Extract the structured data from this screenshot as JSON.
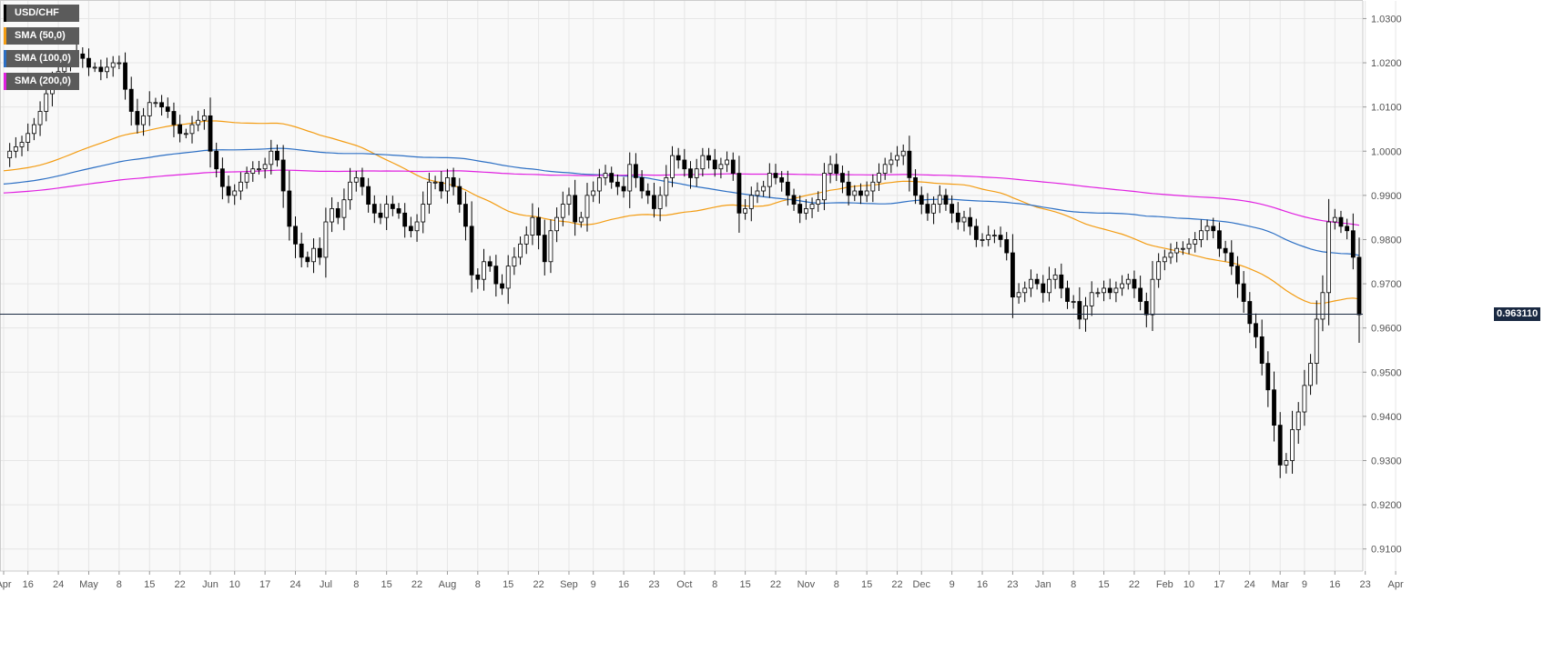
{
  "colors": {
    "background": "#f9f9f9",
    "grid": "#e6e6e6",
    "candle_up": "#ffffff",
    "candle_down": "#000000",
    "wick": "#000000",
    "price_line": "#1a2942"
  },
  "legend": [
    {
      "label": "USD/CHF",
      "color": "#000000"
    },
    {
      "label": "SMA (50,0)",
      "color": "#f39c12"
    },
    {
      "label": "SMA (100,0)",
      "color": "#2c6fc4"
    },
    {
      "label": "SMA (200,0)",
      "color": "#e020e0"
    }
  ],
  "current_price": {
    "label": "0.963110",
    "value": 0.96311
  },
  "chart_data": {
    "type": "candlestick",
    "symbol": "USD/CHF",
    "timeframe": "daily",
    "ylim": [
      0.905,
      1.034
    ],
    "y_ticks": [
      1.03,
      1.02,
      1.01,
      1.0,
      0.99,
      0.98,
      0.97,
      0.96,
      0.95,
      0.94,
      0.93,
      0.92,
      0.91
    ],
    "y_tick_labels": [
      "1.0300",
      "1.0200",
      "1.0100",
      "1.0000",
      "0.9900",
      "0.9800",
      "0.9700",
      "0.9600",
      "0.9500",
      "0.9400",
      "0.9300",
      "0.9200",
      "0.9100"
    ],
    "x_labels": [
      "Apr",
      "16",
      "24",
      "May",
      "8",
      "15",
      "22",
      "Jun",
      "10",
      "17",
      "24",
      "Jul",
      "8",
      "15",
      "22",
      "Aug",
      "8",
      "15",
      "22",
      "Sep",
      "9",
      "16",
      "23",
      "Oct",
      "8",
      "15",
      "22",
      "Nov",
      "8",
      "15",
      "22",
      "Dec",
      "9",
      "16",
      "23",
      "Jan",
      "8",
      "15",
      "22",
      "Feb",
      "10",
      "17",
      "24",
      "Mar",
      "9",
      "16",
      "23",
      "Apr"
    ],
    "x_label_positions": [
      0,
      4,
      9,
      14,
      19,
      24,
      29,
      34,
      38,
      43,
      48,
      53,
      58,
      63,
      68,
      73,
      78,
      83,
      88,
      93,
      97,
      102,
      107,
      112,
      117,
      122,
      127,
      132,
      137,
      142,
      147,
      151,
      156,
      161,
      166,
      171,
      176,
      181,
      186,
      191,
      195,
      200,
      205,
      210,
      214,
      219,
      224,
      229
    ],
    "close_series": [
      0.9985,
      1.0,
      1.001,
      1.002,
      1.004,
      1.006,
      1.009,
      1.013,
      1.016,
      1.018,
      1.02,
      1.021,
      1.022,
      1.021,
      1.019,
      1.019,
      1.018,
      1.019,
      1.02,
      1.02,
      1.014,
      1.009,
      1.006,
      1.008,
      1.011,
      1.011,
      1.01,
      1.009,
      1.006,
      1.004,
      1.004,
      1.006,
      1.007,
      1.008,
      1.0,
      0.996,
      0.992,
      0.99,
      0.991,
      0.993,
      0.995,
      0.996,
      0.996,
      0.997,
      1.0,
      0.998,
      0.991,
      0.983,
      0.979,
      0.976,
      0.975,
      0.978,
      0.976,
      0.984,
      0.987,
      0.985,
      0.989,
      0.993,
      0.994,
      0.992,
      0.988,
      0.986,
      0.985,
      0.988,
      0.987,
      0.986,
      0.983,
      0.982,
      0.984,
      0.988,
      0.993,
      0.993,
      0.991,
      0.994,
      0.992,
      0.988,
      0.983,
      0.972,
      0.971,
      0.975,
      0.974,
      0.97,
      0.969,
      0.974,
      0.976,
      0.979,
      0.981,
      0.985,
      0.981,
      0.975,
      0.982,
      0.985,
      0.988,
      0.99,
      0.984,
      0.985,
      0.99,
      0.991,
      0.994,
      0.995,
      0.993,
      0.992,
      0.991,
      0.997,
      0.994,
      0.991,
      0.99,
      0.987,
      0.99,
      0.994,
      0.999,
      0.998,
      0.996,
      0.994,
      0.996,
      0.999,
      0.998,
      0.996,
      0.997,
      0.998,
      0.995,
      0.986,
      0.987,
      0.99,
      0.991,
      0.992,
      0.995,
      0.994,
      0.993,
      0.99,
      0.988,
      0.986,
      0.987,
      0.988,
      0.989,
      0.995,
      0.997,
      0.995,
      0.993,
      0.99,
      0.991,
      0.99,
      0.991,
      0.993,
      0.995,
      0.997,
      0.998,
      0.999,
      1.0,
      0.994,
      0.99,
      0.988,
      0.986,
      0.988,
      0.99,
      0.988,
      0.986,
      0.984,
      0.985,
      0.983,
      0.98,
      0.98,
      0.981,
      0.981,
      0.98,
      0.977,
      0.967,
      0.968,
      0.969,
      0.971,
      0.97,
      0.968,
      0.971,
      0.972,
      0.969,
      0.966,
      0.966,
      0.962,
      0.965,
      0.968,
      0.968,
      0.969,
      0.968,
      0.969,
      0.97,
      0.971,
      0.969,
      0.966,
      0.963,
      0.971,
      0.975,
      0.976,
      0.977,
      0.978,
      0.978,
      0.979,
      0.98,
      0.982,
      0.983,
      0.982,
      0.978,
      0.977,
      0.974,
      0.97,
      0.966,
      0.961,
      0.958,
      0.952,
      0.946,
      0.938,
      0.929,
      0.93,
      0.937,
      0.941,
      0.947,
      0.952,
      0.962,
      0.968,
      0.984,
      0.985,
      0.983,
      0.982,
      0.976,
      0.963
    ]
  }
}
